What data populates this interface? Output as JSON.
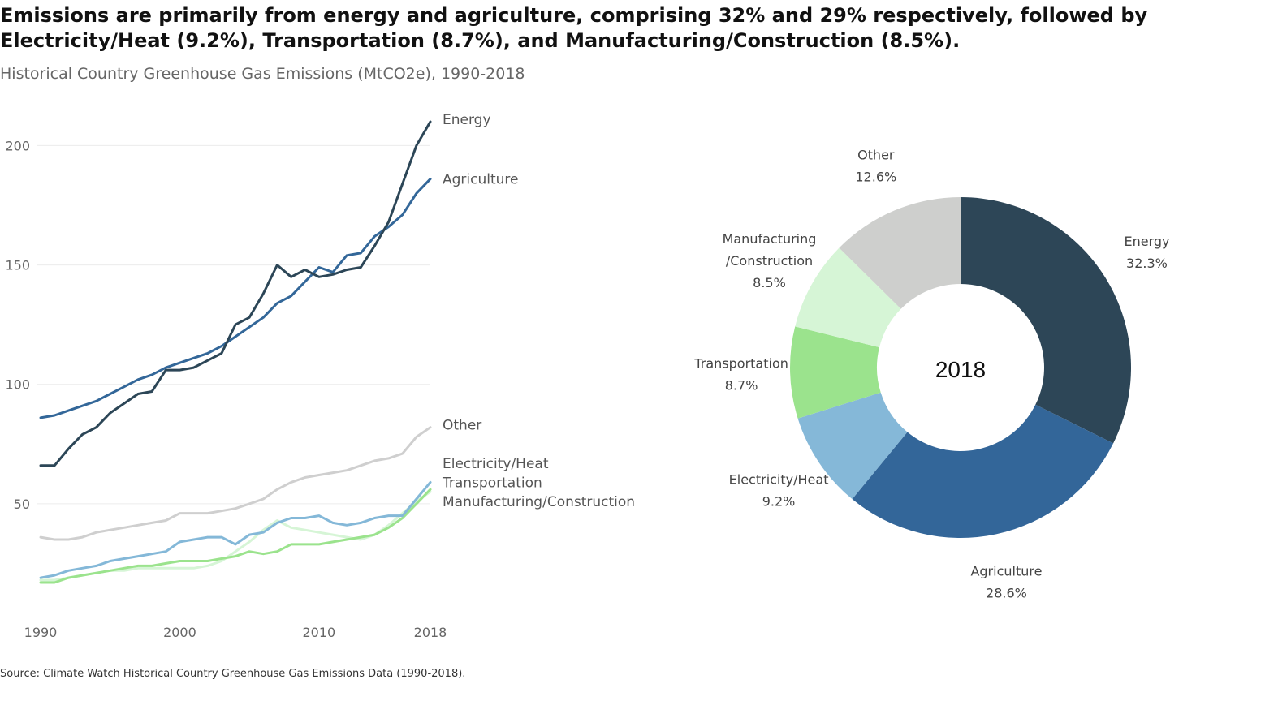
{
  "title": "Emissions are primarily from energy and agriculture, comprising 32% and 29% respectively, followed by Electricity/Heat (9.2%), Transportation (8.7%), and Manufacturing/Construction (8.5%).",
  "subtitle": "Historical Country Greenhouse Gas Emissions (MtCO2e), 1990-2018",
  "source": "Source: Climate Watch Historical Country Greenhouse Gas Emissions Data (1990-2018).",
  "chart_data": [
    {
      "type": "line",
      "title": "",
      "xlabel": "",
      "ylabel": "",
      "xlim": [
        1990,
        2018
      ],
      "ylim": [
        0,
        210
      ],
      "x_ticks": [
        "1990",
        "2000",
        "2010",
        "2018"
      ],
      "y_ticks": [
        "50",
        "100",
        "150",
        "200"
      ],
      "grid": "horizontal",
      "x": [
        1990,
        1991,
        1992,
        1993,
        1994,
        1995,
        1996,
        1997,
        1998,
        1999,
        2000,
        2001,
        2002,
        2003,
        2004,
        2005,
        2006,
        2007,
        2008,
        2009,
        2010,
        2011,
        2012,
        2013,
        2014,
        2015,
        2016,
        2017,
        2018
      ],
      "series": [
        {
          "name": "Energy",
          "color": "#2c4657",
          "width": 3,
          "label_y": 211,
          "values": [
            66,
            66,
            73,
            79,
            82,
            88,
            92,
            96,
            97,
            106,
            106,
            107,
            110,
            113,
            125,
            128,
            138,
            150,
            145,
            148,
            145,
            146,
            148,
            149,
            158,
            168,
            184,
            200,
            210
          ]
        },
        {
          "name": "Agriculture",
          "color": "#336799",
          "width": 3,
          "label_y": 186,
          "values": [
            86,
            87,
            89,
            91,
            93,
            96,
            99,
            102,
            104,
            107,
            109,
            111,
            113,
            116,
            120,
            124,
            128,
            134,
            137,
            143,
            149,
            147,
            154,
            155,
            162,
            166,
            171,
            180,
            186
          ]
        },
        {
          "name": "Other",
          "color": "#cfcfcf",
          "width": 3,
          "label_y": 83,
          "values": [
            36,
            35,
            35,
            36,
            38,
            39,
            40,
            41,
            42,
            43,
            46,
            46,
            46,
            47,
            48,
            50,
            52,
            56,
            59,
            61,
            62,
            63,
            64,
            66,
            68,
            69,
            71,
            78,
            82
          ]
        },
        {
          "name": "Electricity/Heat",
          "color": "#84b8d8",
          "width": 3,
          "label_y": 67,
          "values": [
            19,
            20,
            22,
            23,
            24,
            26,
            27,
            28,
            29,
            30,
            34,
            35,
            36,
            36,
            33,
            37,
            38,
            42,
            44,
            44,
            45,
            42,
            41,
            42,
            44,
            45,
            45,
            52,
            59
          ]
        },
        {
          "name": "Transportation",
          "color": "#9be38d",
          "width": 3,
          "label_y": 59,
          "values": [
            17,
            17,
            19,
            20,
            21,
            22,
            23,
            24,
            24,
            25,
            26,
            26,
            26,
            27,
            28,
            30,
            29,
            30,
            33,
            33,
            33,
            34,
            35,
            36,
            37,
            40,
            44,
            50,
            56
          ]
        },
        {
          "name": "Manufacturing/Construction",
          "color": "#d6f5d6",
          "width": 3,
          "label_y": 51,
          "values": [
            18,
            18,
            19,
            20,
            21,
            22,
            22,
            23,
            23,
            23,
            23,
            23,
            24,
            26,
            30,
            34,
            39,
            43,
            40,
            39,
            38,
            37,
            36,
            35,
            37,
            41,
            46,
            51,
            55
          ]
        }
      ]
    },
    {
      "type": "pie",
      "title": "",
      "center_label": "2018",
      "slices": [
        {
          "name": "Energy",
          "value": 32.3,
          "label": "32.3%",
          "color": "#2d4657",
          "name_lines": [
            "Energy"
          ]
        },
        {
          "name": "Agriculture",
          "value": 28.6,
          "label": "28.6%",
          "color": "#336699",
          "name_lines": [
            "Agriculture"
          ]
        },
        {
          "name": "Electricity/Heat",
          "value": 9.2,
          "label": "9.2%",
          "color": "#85b8d8",
          "name_lines": [
            "Electricity/Heat"
          ]
        },
        {
          "name": "Transportation",
          "value": 8.7,
          "label": "8.7%",
          "color": "#9be38d",
          "name_lines": [
            "Transportation"
          ]
        },
        {
          "name": "Manufacturing/Construction",
          "value": 8.5,
          "label": "8.5%",
          "color": "#d6f5d6",
          "name_lines": [
            "Manufacturing",
            "/Construction"
          ]
        },
        {
          "name": "Other",
          "value": 12.6,
          "label": "12.6%",
          "color": "#cecfcd",
          "name_lines": [
            "Other"
          ]
        }
      ]
    }
  ]
}
